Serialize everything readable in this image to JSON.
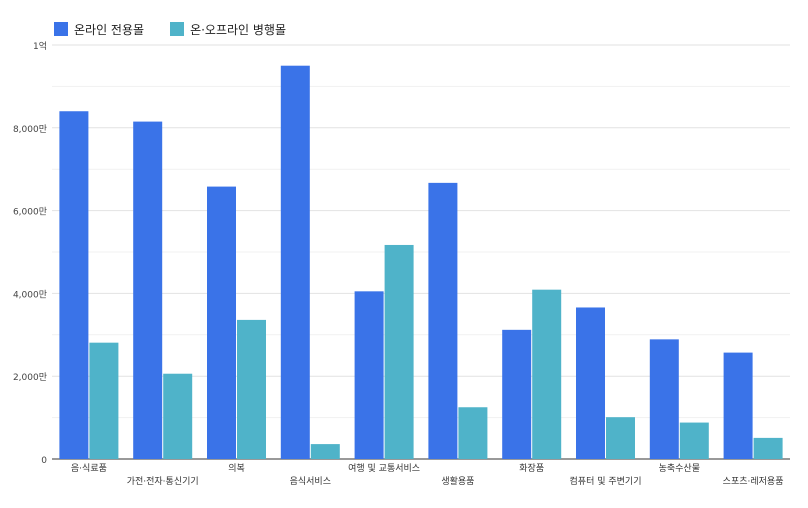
{
  "chart_data": {
    "type": "bar",
    "categories": [
      "음·식료품",
      "가전·전자·통신기기",
      "의복",
      "음식서비스",
      "여행 및 교통서비스",
      "생활용품",
      "화장품",
      "컴퓨터 및 주변기기",
      "농축수산물",
      "스포츠·레저용품"
    ],
    "series": [
      {
        "name": "온라인 전용몰",
        "color": "#3a73e8",
        "values": [
          84000000,
          81500000,
          65800000,
          95000000,
          40500000,
          66700000,
          31200000,
          36600000,
          28900000,
          25700000
        ]
      },
      {
        "name": "온·오프라인 병행몰",
        "color": "#4fb3c9",
        "values": [
          28100000,
          20600000,
          33600000,
          3600000,
          51700000,
          12500000,
          40900000,
          10100000,
          8800000,
          5100000
        ]
      }
    ],
    "yticks": [
      0,
      20000000,
      40000000,
      60000000,
      80000000,
      100000000
    ],
    "ytick_labels": [
      "0",
      "2,000만",
      "4,000만",
      "6,000만",
      "8,000만",
      "1억"
    ],
    "ylim": [
      0,
      100000000
    ],
    "legend_position": "top-left",
    "grid": true
  }
}
